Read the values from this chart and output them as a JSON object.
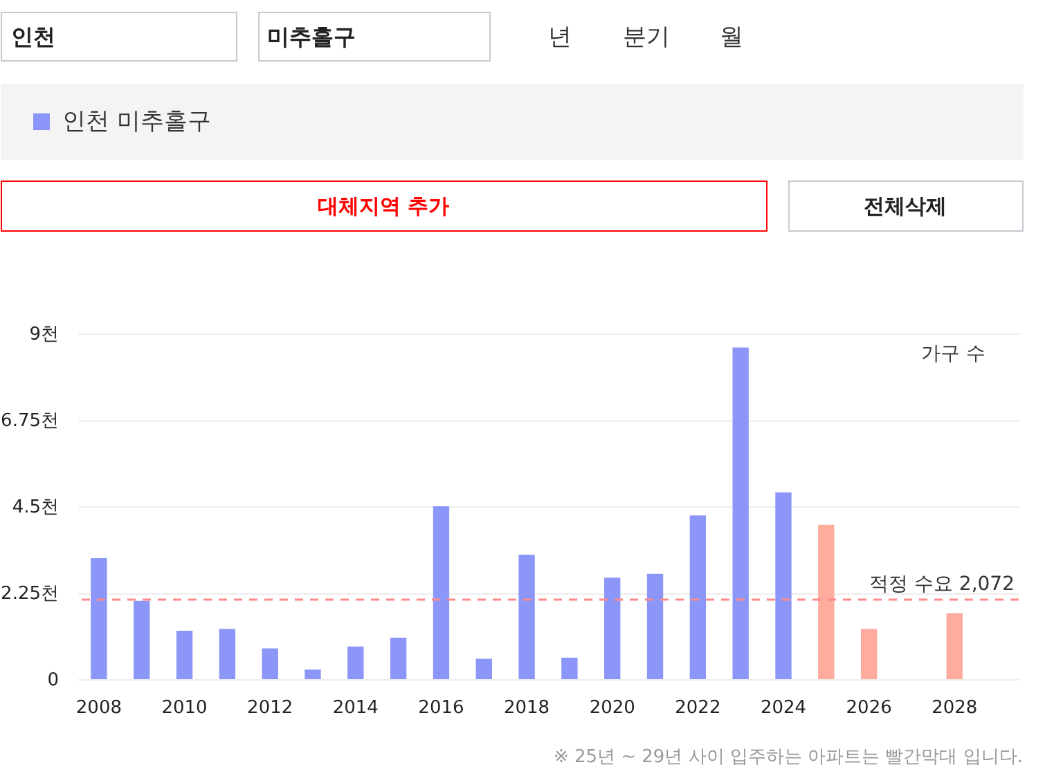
{
  "chart_data": {
    "type": "bar",
    "ylabel": "가구 수",
    "categories": [
      "2008",
      null,
      "2010",
      null,
      "2012",
      null,
      "2014",
      null,
      "2016",
      null,
      "2018",
      null,
      "2020",
      null,
      "2022",
      null,
      "2024",
      null,
      "2026",
      null,
      "2028",
      null
    ],
    "series": [
      {
        "name": "인천 미추홀구",
        "color": "#8c96f8",
        "values": [
          3.15,
          2.04,
          1.26,
          1.31,
          0.8,
          0.25,
          0.85,
          1.08,
          4.5,
          0.53,
          3.24,
          0.56,
          2.64,
          2.74,
          4.26,
          8.63,
          4.86,
          4.02,
          1.31,
          null,
          1.72,
          null
        ],
        "colors": [
          "#8c96f8",
          "#8c96f8",
          "#8c96f8",
          "#8c96f8",
          "#8c96f8",
          "#8c96f8",
          "#8c96f8",
          "#8c96f8",
          "#8c96f8",
          "#8c96f8",
          "#8c96f8",
          "#8c96f8",
          "#8c96f8",
          "#8c96f8",
          "#8c96f8",
          "#8c96f8",
          "#8c96f8",
          "#ffab9d",
          "#ffab9d",
          "#ffab9d",
          "#ffab9d",
          "#ffab9d"
        ]
      }
    ],
    "ylim": [
      0,
      9
    ],
    "yticks": [
      0,
      {
        "value": 2.25,
        "label": "2.25천"
      },
      {
        "value": 4.5,
        "label": "4.5천"
      },
      {
        "value": 6.75,
        "label": "6.75천"
      },
      {
        "value": 9,
        "label": "9천"
      }
    ],
    "grid": "y",
    "legend": "top",
    "ref_lines": [
      {
        "axis": "y",
        "value": 2.072,
        "label": "적정 수요 2,072",
        "color": "#ff8a8a",
        "line_style": "dashed"
      }
    ],
    "annotations": [
      "인천",
      "미추홀구",
      "년",
      "분기",
      "월",
      "대체지역 추가",
      "전체삭제",
      "※ 25년 ~ 29년 사이 입주하는 아파트는 빨간막대 입니다."
    ]
  }
}
